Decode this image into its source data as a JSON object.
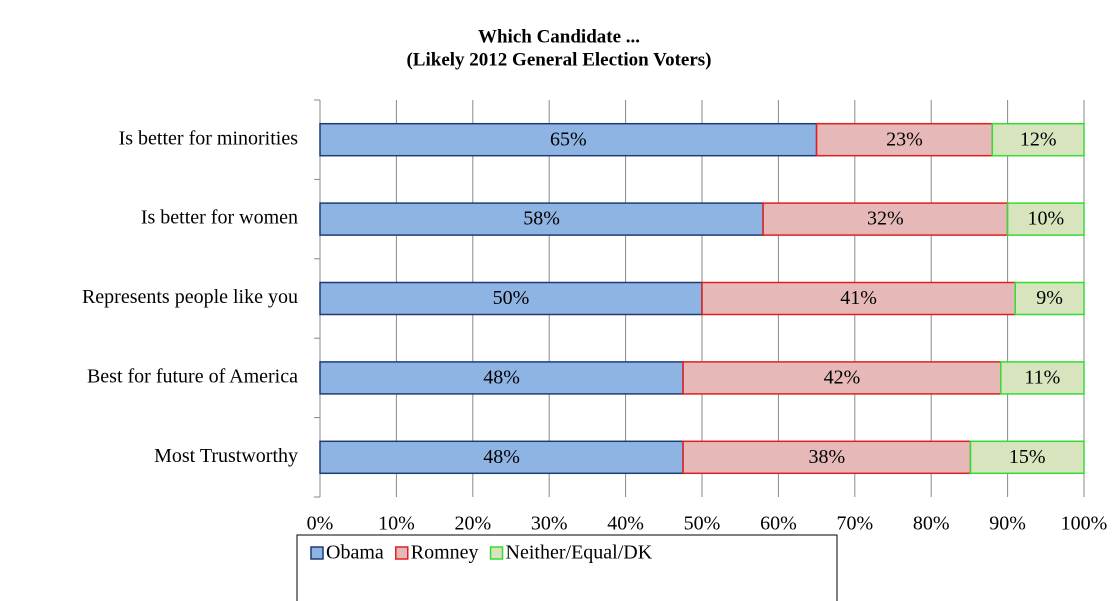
{
  "chart_data": {
    "type": "bar",
    "orientation": "horizontal",
    "stacked": "percent",
    "title": "Which Candidate ...",
    "subtitle": "(Likely 2012 General Election Voters)",
    "categories": [
      "Is better for minorities",
      "Is better for women",
      "Represents people like you",
      "Best for future of America",
      "Most Trustworthy"
    ],
    "series": [
      {
        "name": "Obama",
        "color": "#8eb4e3",
        "edge": "#1f3b73",
        "values": [
          65,
          58,
          50,
          48,
          48
        ],
        "value_labels": [
          "65%",
          "58%",
          "50%",
          "48%",
          "48%"
        ]
      },
      {
        "name": "Romney",
        "color": "#e6b9b8",
        "edge": "#e02020",
        "values": [
          23,
          32,
          41,
          42,
          38
        ],
        "value_labels": [
          "23%",
          "32%",
          "41%",
          "42%",
          "38%"
        ]
      },
      {
        "name": "Neither/Equal/DK",
        "color": "#d7e4bd",
        "edge": "#33dd33",
        "values": [
          12,
          10,
          9,
          11,
          15
        ],
        "value_labels": [
          "12%",
          "10%",
          "9%",
          "11%",
          "15%"
        ]
      }
    ],
    "xlim": [
      0,
      100
    ],
    "xticks": [
      {
        "value": 0,
        "label": "0%"
      },
      {
        "value": 10,
        "label": "10%"
      },
      {
        "value": 20,
        "label": "20%"
      },
      {
        "value": 30,
        "label": "30%"
      },
      {
        "value": 40,
        "label": "40%"
      },
      {
        "value": 50,
        "label": "50%"
      },
      {
        "value": 60,
        "label": "60%"
      },
      {
        "value": 70,
        "label": "70%"
      },
      {
        "value": 80,
        "label": "80%"
      },
      {
        "value": 90,
        "label": "90%"
      },
      {
        "value": 100,
        "label": "100%"
      }
    ],
    "grid": true,
    "legend": "bottom"
  }
}
